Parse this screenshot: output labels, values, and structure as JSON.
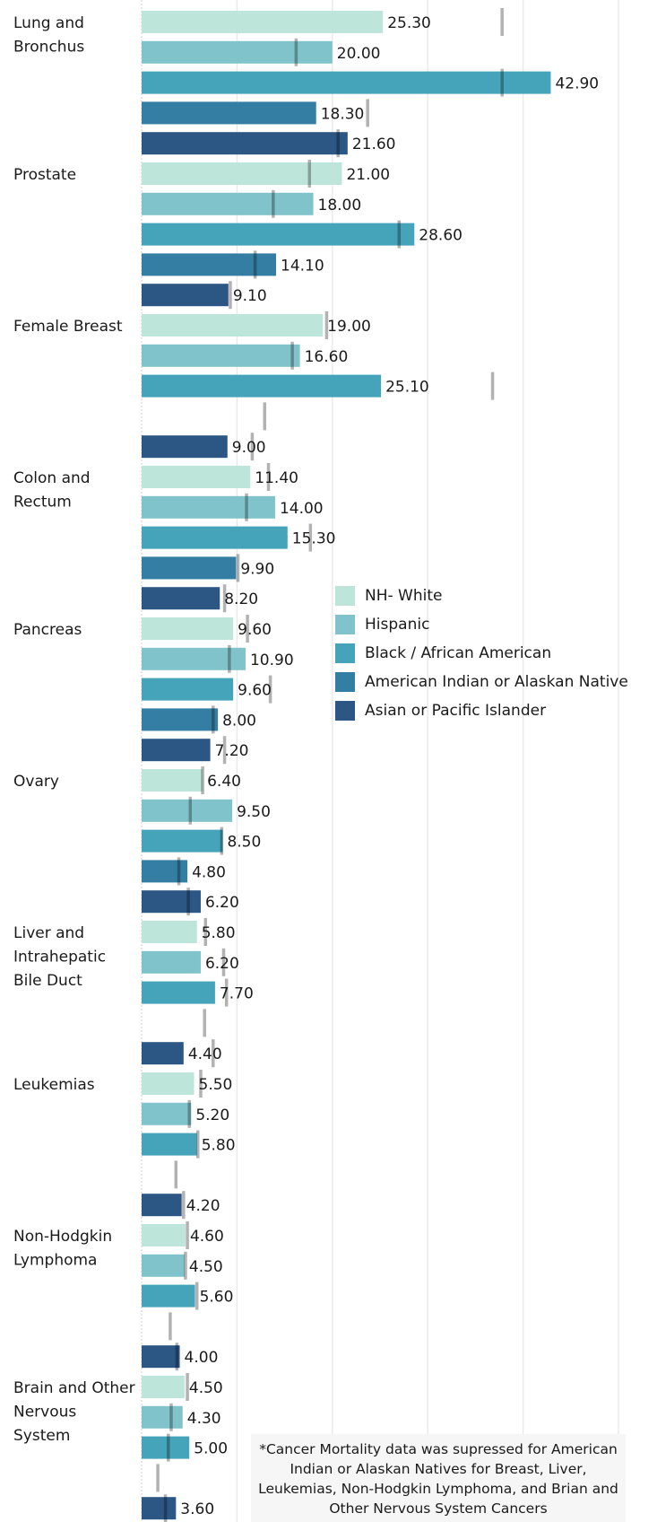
{
  "legend": [
    {
      "label": "NH- White",
      "color": "#bde5da"
    },
    {
      "label": "Hispanic",
      "color": "#81c3cb"
    },
    {
      "label": "Black / African American",
      "color": "#45a4ba"
    },
    {
      "label": "American Indian or Alaskan Native",
      "color": "#357ea3"
    },
    {
      "label": "Asian or Pacific Islander",
      "color": "#2c5784"
    }
  ],
  "footnote": "*Cancer Mortality data was supressed for American Indian or Alaskan Natives for Breast, Liver, Leukemias, Non-Hodgkin Lymphoma, and Brian and Other Nervous System Cancers",
  "chart_data": {
    "type": "bar",
    "orientation": "horizontal",
    "grid": true,
    "legend_position": "right",
    "xlim": [
      0,
      50
    ],
    "series_names": [
      "NH- White",
      "Hispanic",
      "Black / African American",
      "American Indian or Alaskan Native",
      "Asian or Pacific Islander"
    ],
    "categories": [
      {
        "name": "Lung and Bronchus",
        "label_lines": [
          "Lung and",
          "Bronchus"
        ],
        "values": [
          25.3,
          20.0,
          42.9,
          18.3,
          21.6
        ],
        "labels": [
          "25.30",
          "20.00",
          "42.90",
          "18.30",
          "21.60"
        ],
        "refs": [
          37.8,
          16.2,
          37.8,
          23.7,
          20.6
        ]
      },
      {
        "name": "Prostate",
        "label_lines": [
          "Prostate"
        ],
        "values": [
          21.0,
          18.0,
          28.6,
          14.1,
          9.1
        ],
        "labels": [
          "21.00",
          "18.00",
          "28.60",
          "14.10",
          "9.10"
        ],
        "refs": [
          17.6,
          13.8,
          27.0,
          11.9,
          9.3
        ]
      },
      {
        "name": "Female Breast",
        "label_lines": [
          "Female Breast"
        ],
        "values": [
          19.0,
          16.6,
          25.1,
          null,
          9.0
        ],
        "labels": [
          "19.00",
          "16.60",
          "25.10",
          "",
          "9.00"
        ],
        "refs": [
          19.4,
          15.8,
          36.8,
          12.9,
          11.6
        ]
      },
      {
        "name": "Colon and Rectum",
        "label_lines": [
          "Colon and",
          "Rectum"
        ],
        "values": [
          11.4,
          14.0,
          15.3,
          9.9,
          8.2
        ],
        "labels": [
          "11.40",
          "14.00",
          "15.30",
          "9.90",
          "8.20"
        ],
        "refs": [
          13.3,
          11.0,
          17.7,
          10.1,
          8.7
        ]
      },
      {
        "name": "Pancreas",
        "label_lines": [
          "Pancreas"
        ],
        "values": [
          9.6,
          10.9,
          9.6,
          8.0,
          7.2
        ],
        "labels": [
          "9.60",
          "10.90",
          "9.60",
          "8.00",
          "7.20"
        ],
        "refs": [
          11.1,
          9.2,
          13.5,
          7.5,
          8.7
        ]
      },
      {
        "name": "Ovary",
        "label_lines": [
          "Ovary"
        ],
        "values": [
          6.4,
          9.5,
          8.5,
          4.8,
          6.2
        ],
        "labels": [
          "6.40",
          "9.50",
          "8.50",
          "4.80",
          "6.20"
        ],
        "refs": [
          6.4,
          5.1,
          8.4,
          3.9,
          4.9
        ]
      },
      {
        "name": "Liver and Intrahepatic Bile Duct",
        "label_lines": [
          "Liver and",
          "Intrahepatic",
          "Bile Duct"
        ],
        "values": [
          5.8,
          6.2,
          7.7,
          null,
          4.4
        ],
        "labels": [
          "5.80",
          "6.20",
          "7.70",
          "",
          "4.40"
        ],
        "refs": [
          6.7,
          8.6,
          8.9,
          6.6,
          7.5
        ]
      },
      {
        "name": "Leukemias",
        "label_lines": [
          "Leukemias"
        ],
        "values": [
          5.5,
          5.2,
          5.8,
          null,
          4.2
        ],
        "labels": [
          "5.50",
          "5.20",
          "5.80",
          "",
          "4.20"
        ],
        "refs": [
          6.2,
          5.0,
          5.9,
          3.6,
          4.4
        ]
      },
      {
        "name": "Non-Hodgkin Lymphoma",
        "label_lines": [
          "Non-Hodgkin",
          "Lymphoma"
        ],
        "values": [
          4.6,
          4.5,
          5.6,
          null,
          4.0
        ],
        "labels": [
          "4.60",
          "4.50",
          "5.60",
          "",
          "4.00"
        ],
        "refs": [
          4.8,
          4.6,
          5.8,
          3.0,
          3.7
        ]
      },
      {
        "name": "Brain and Other Nervous System",
        "label_lines": [
          "Brain and Other",
          "Nervous",
          "System"
        ],
        "values": [
          4.5,
          4.3,
          5.0,
          null,
          3.6
        ],
        "labels": [
          "4.50",
          "4.30",
          "5.00",
          "",
          "3.60"
        ],
        "refs": [
          4.8,
          3.1,
          2.8,
          1.7,
          2.5
        ]
      }
    ]
  }
}
